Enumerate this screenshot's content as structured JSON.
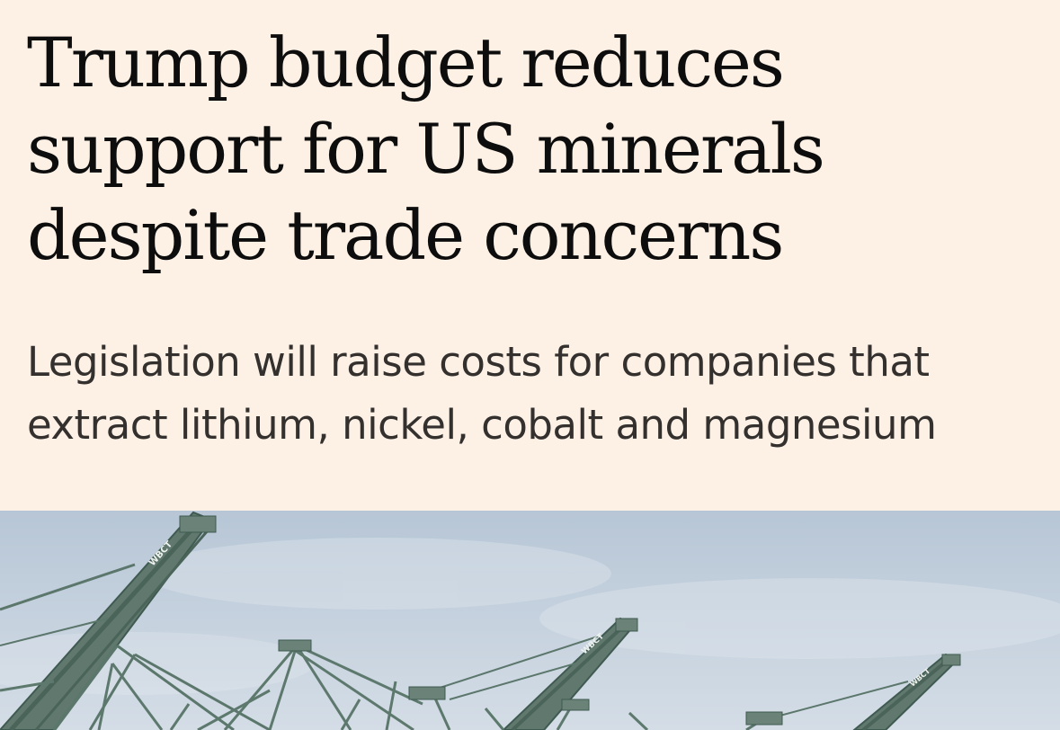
{
  "article": {
    "headline": "Trump budget reduces support for US minerals despite trade concerns",
    "standfirst": "Legislation will raise costs for companies that extract lithium, nickel, cobalt and magnesium"
  },
  "image": {
    "subject": "port-container-cranes",
    "crane_label": "WBCT",
    "colors": {
      "sky_top": "#b5c4d4",
      "sky_bottom": "#d3dce5",
      "crane": "#5d786d",
      "crane_dark": "#3f5a50"
    }
  }
}
